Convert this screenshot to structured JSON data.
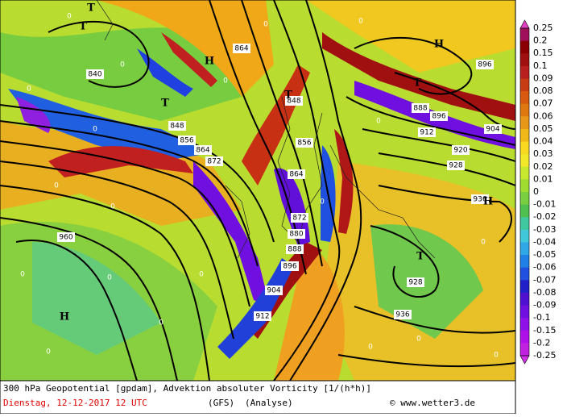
{
  "legend": {
    "labels": [
      "0.25",
      "0.2",
      "0.15",
      "0.1",
      "0.09",
      "0.08",
      "0.07",
      "0.06",
      "0.05",
      "0.04",
      "0.03",
      "0.02",
      "0.01",
      "0",
      "-0.01",
      "-0.02",
      "-0.03",
      "-0.04",
      "-0.05",
      "-0.06",
      "-0.07",
      "-0.08",
      "-0.09",
      "-0.1",
      "-0.15",
      "-0.2",
      "-0.25"
    ]
  },
  "caption": {
    "line1": "300 hPa Geopotential [gpdam], Advektion absoluter Vorticity [1/(h*h)]",
    "date": "Dienstag, 12-12-2017  12 UTC",
    "model": "(GFS)",
    "run": "(Analyse)",
    "source": "© www.wetter3.de"
  },
  "map": {
    "contour_labels": [
      "840",
      "848",
      "856",
      "864",
      "872",
      "864",
      "848",
      "856",
      "864",
      "872",
      "880",
      "888",
      "896",
      "904",
      "912",
      "888",
      "896",
      "904",
      "912",
      "920",
      "928",
      "936",
      "928",
      "936",
      "960",
      "896"
    ],
    "pressure_centers": [
      "T",
      "T",
      "H",
      "T",
      "T",
      "H",
      "T",
      "H",
      "T",
      "H"
    ],
    "zero_labels": [
      "0",
      "0",
      "0",
      "0",
      "0",
      "0",
      "0",
      "0",
      "0",
      "0",
      "0",
      "0",
      "0",
      "0",
      "0",
      "0",
      "0",
      "0",
      "0",
      "0"
    ]
  }
}
